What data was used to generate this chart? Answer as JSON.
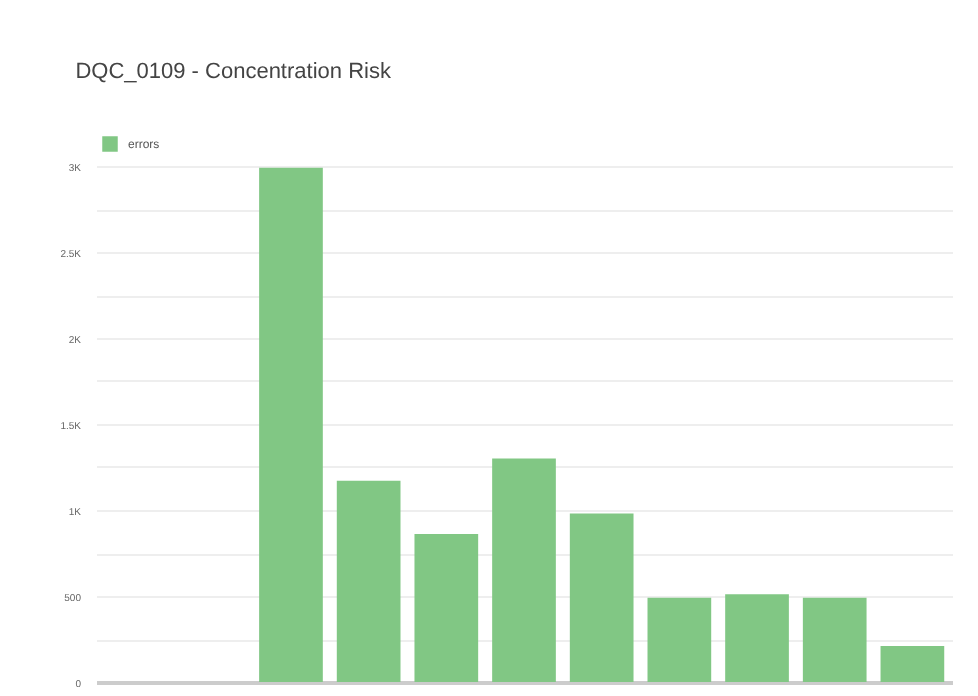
{
  "chart_data": {
    "type": "bar",
    "title": "DQC_0109 - Concentration Risk",
    "categories": [
      null,
      null,
      null,
      null,
      null,
      null,
      null,
      null,
      null,
      null,
      null
    ],
    "series": [
      {
        "name": "errors",
        "color": "#81c784",
        "values": [
          0,
          0,
          2990,
          1170,
          860,
          1300,
          980,
          490,
          510,
          490,
          210
        ]
      }
    ],
    "ylim": [
      0,
      3000
    ],
    "yticks": [
      0,
      {
        "value": 250,
        "label": null
      },
      {
        "value": 500,
        "label": "500"
      },
      {
        "value": 750,
        "label": null
      },
      {
        "value": 1000,
        "label": "1K"
      },
      {
        "value": 1250,
        "label": null
      },
      {
        "value": 1500,
        "label": "1.5K"
      },
      {
        "value": 1750,
        "label": null
      },
      {
        "value": 2000,
        "label": "2K"
      },
      {
        "value": 2250,
        "label": null
      },
      {
        "value": 2500,
        "label": "2.5K"
      },
      {
        "value": 2750,
        "label": null
      },
      {
        "value": 3000,
        "label": "3K"
      }
    ],
    "grid": true,
    "legend": "top left"
  }
}
